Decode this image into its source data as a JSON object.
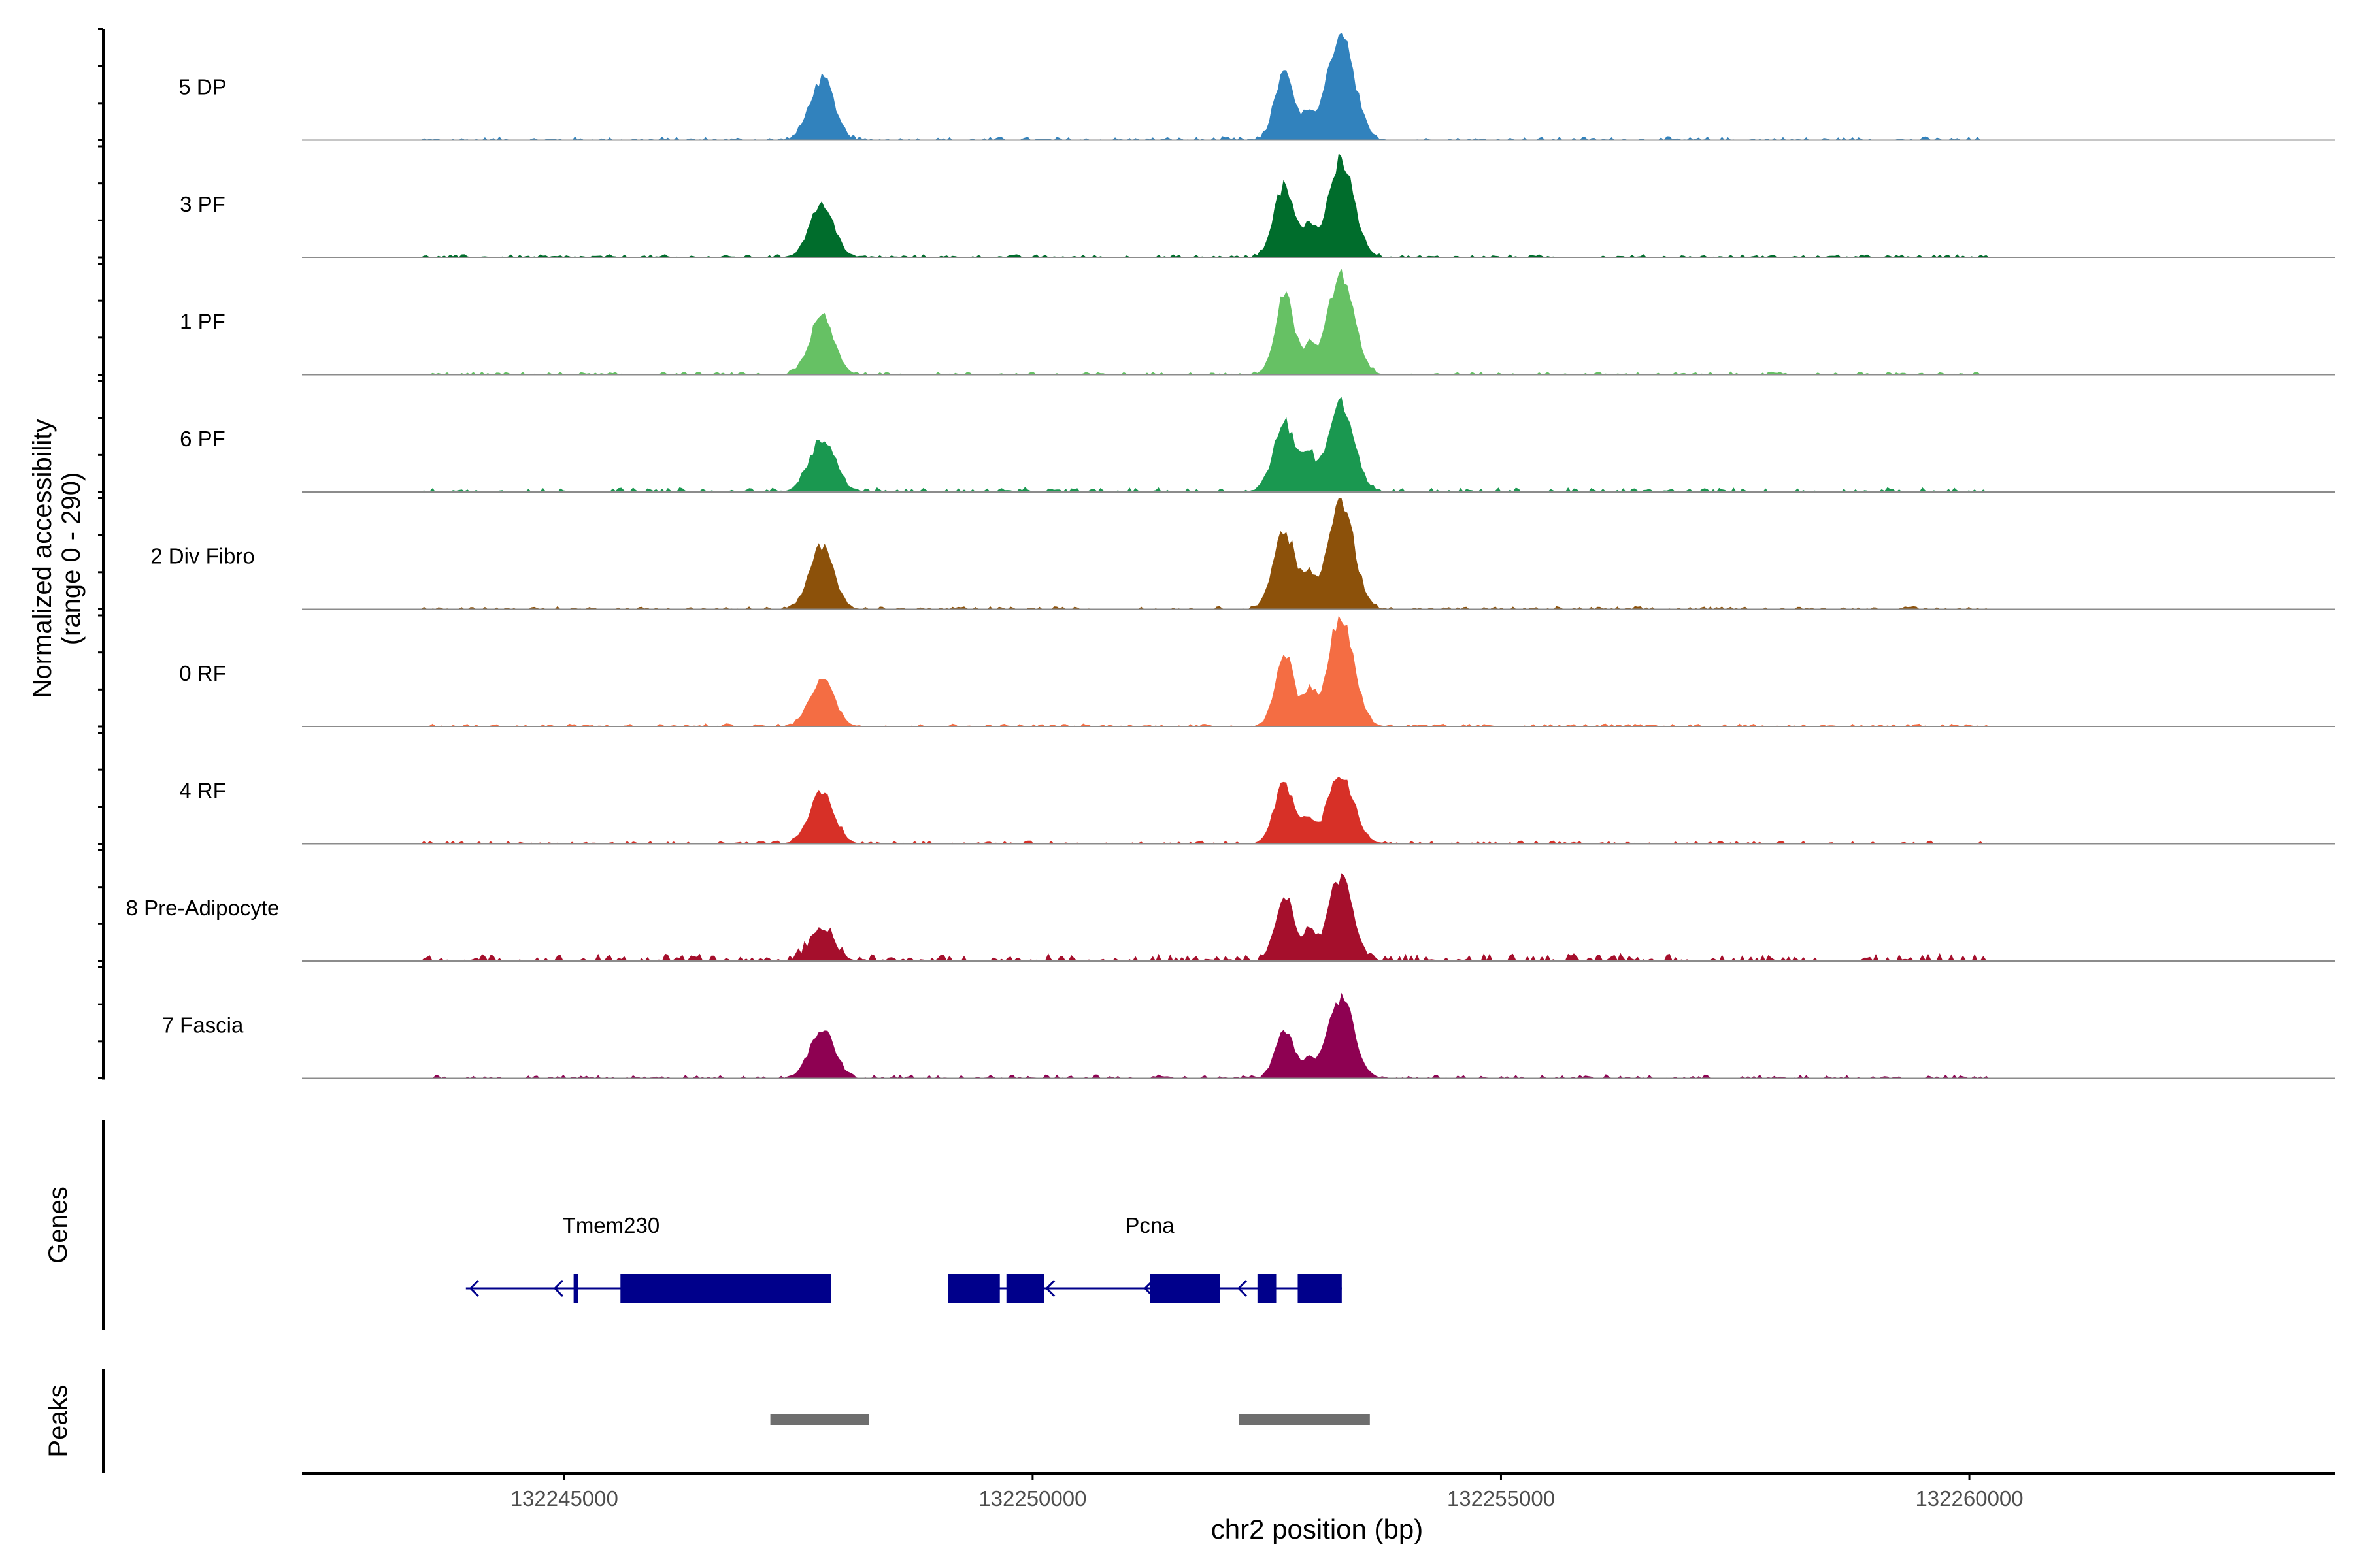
{
  "chart_data": {
    "type": "area",
    "title": "",
    "y_axis_label_line1": "Normalized accessibility",
    "y_axis_label_line2": "(range 0 - 290)",
    "xlabel": "chr2 position (bp)",
    "xlim": [
      132242200,
      132263900
    ],
    "ylim": [
      0,
      290
    ],
    "x_ticks": [
      132245000,
      132250000,
      132255000,
      132260000
    ],
    "x_tick_labels": [
      "132245000",
      "132250000",
      "132255000",
      "132260000"
    ],
    "tracks": [
      {
        "name": "5 DP",
        "color": "#3182bd",
        "peaks": [
          [
            132247750,
            160,
            130
          ],
          [
            132252690,
            185,
            100
          ],
          [
            132252950,
            60,
            60
          ],
          [
            132253290,
            285,
            140
          ]
        ],
        "noise": 10
      },
      {
        "name": "3 PF",
        "color": "#006d2c",
        "peaks": [
          [
            132247750,
            140,
            130
          ],
          [
            132252690,
            190,
            110
          ],
          [
            132252950,
            70,
            60
          ],
          [
            132253290,
            250,
            140
          ]
        ],
        "noise": 8
      },
      {
        "name": "1 PF",
        "color": "#66c164",
        "peaks": [
          [
            132247750,
            150,
            130
          ],
          [
            132252690,
            210,
            100
          ],
          [
            132252950,
            65,
            60
          ],
          [
            132253290,
            260,
            140
          ]
        ],
        "noise": 8
      },
      {
        "name": "6 PF",
        "color": "#1a9850",
        "peaks": [
          [
            132247750,
            135,
            140
          ],
          [
            132252690,
            180,
            120
          ],
          [
            132252950,
            90,
            60
          ],
          [
            132253290,
            230,
            140
          ]
        ],
        "noise": 12
      },
      {
        "name": "2 Div Fibro",
        "color": "#8c510a",
        "peaks": [
          [
            132247750,
            160,
            130
          ],
          [
            132252690,
            200,
            120
          ],
          [
            132252950,
            70,
            60
          ],
          [
            132253290,
            280,
            140
          ]
        ],
        "noise": 8
      },
      {
        "name": "0 RF",
        "color": "#f46d43",
        "peaks": [
          [
            132247750,
            125,
            130
          ],
          [
            132252690,
            195,
            100
          ],
          [
            132252950,
            80,
            60
          ],
          [
            132253290,
            285,
            140
          ]
        ],
        "noise": 8
      },
      {
        "name": "4 RF",
        "color": "#d73027",
        "peaks": [
          [
            132247750,
            135,
            130
          ],
          [
            132252690,
            155,
            110
          ],
          [
            132252950,
            55,
            60
          ],
          [
            132253290,
            180,
            140
          ]
        ],
        "noise": 8
      },
      {
        "name": "8 Pre-Adipocyte",
        "color": "#a50f2c",
        "peaks": [
          [
            132247750,
            85,
            130
          ],
          [
            132252690,
            165,
            100
          ],
          [
            132252950,
            75,
            60
          ],
          [
            132253290,
            220,
            130
          ]
        ],
        "noise": 20
      },
      {
        "name": "7 Fascia",
        "color": "#8e0152",
        "peaks": [
          [
            132247750,
            130,
            130
          ],
          [
            132252690,
            120,
            100
          ],
          [
            132252950,
            45,
            60
          ],
          [
            132253290,
            210,
            140
          ]
        ],
        "noise": 10
      }
    ],
    "genes_label": "Genes",
    "genes": [
      {
        "name": "Tmem230",
        "start": 132243950,
        "end": 132247850,
        "label_x": 132245500,
        "strand": "-",
        "exons": [
          [
            132245100,
            132245150
          ],
          [
            132245600,
            132247850
          ]
        ],
        "arrows": [
          132244000,
          132244900
        ]
      },
      {
        "name": "Pcna",
        "start": 132249100,
        "end": 132253300,
        "label_x": 132251250,
        "strand": "-",
        "exons": [
          [
            132249100,
            132249650
          ],
          [
            132249720,
            132250120
          ],
          [
            132251250,
            132252000
          ],
          [
            132252400,
            132252600
          ],
          [
            132252830,
            132253300
          ]
        ],
        "arrows": [
          132250150,
          132251200,
          132252200
        ]
      }
    ],
    "peaks_label": "Peaks",
    "peak_regions": [
      [
        132247200,
        132248250
      ],
      [
        132252200,
        132253600
      ]
    ]
  }
}
